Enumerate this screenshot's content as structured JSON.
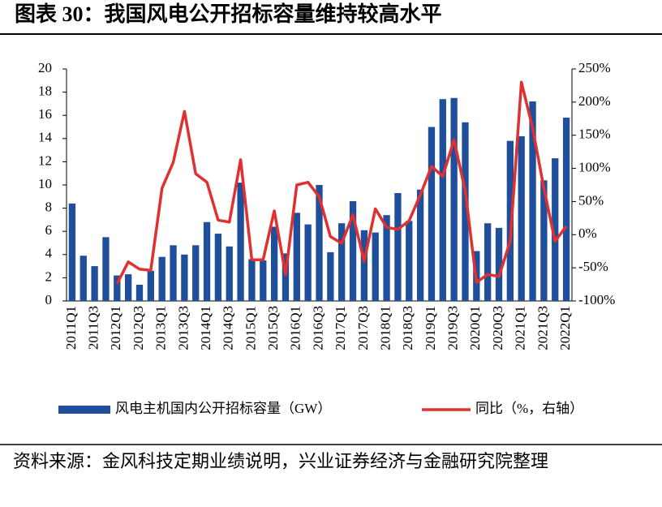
{
  "title": "图表 30：我国风电公开招标容量维持较高水平",
  "source": "资料来源：金风科技定期业绩说明，兴业证券经济与金融研究院整理",
  "chart_data": {
    "type": "bar_line",
    "categories": [
      "2011Q1",
      null,
      "2011Q3",
      null,
      "2012Q1",
      null,
      "2012Q3",
      null,
      "2013Q1",
      null,
      "2013Q3",
      null,
      "2014Q1",
      null,
      "2014Q3",
      null,
      "2015Q1",
      null,
      "2015Q3",
      null,
      "2016Q1",
      null,
      "2016Q3",
      null,
      "2017Q1",
      null,
      "2017Q3",
      null,
      "2018Q1",
      null,
      "2018Q3",
      null,
      "2019Q1",
      null,
      "2019Q3",
      null,
      "2020Q1",
      null,
      "2020Q3",
      null,
      "2021Q1",
      null,
      "2021Q3",
      null,
      "2022Q1"
    ],
    "series": [
      {
        "name": "风电主机国内公开招标容量（GW）",
        "type": "bar",
        "color": "#1f4e9a",
        "values": [
          8.4,
          3.9,
          3.0,
          5.5,
          2.2,
          2.3,
          1.4,
          2.6,
          3.8,
          4.8,
          4.0,
          4.8,
          6.8,
          5.8,
          4.7,
          10.2,
          3.6,
          3.5,
          6.4,
          4.1,
          7.6,
          6.6,
          10.0,
          4.2,
          6.7,
          8.6,
          6.1,
          5.9,
          7.4,
          9.3,
          6.9,
          9.6,
          15.0,
          17.4,
          17.5,
          15.4,
          4.3,
          6.7,
          6.3,
          13.8,
          14.2,
          17.2,
          10.4,
          12.3,
          15.8
        ]
      },
      {
        "name": "同比（%，右轴）",
        "type": "line",
        "axis": "y2",
        "color": "#e03030",
        "values": [
          null,
          null,
          null,
          null,
          -74,
          -41,
          -52,
          -54,
          70,
          109,
          186,
          92,
          79,
          22,
          19,
          113,
          -38,
          -38,
          36,
          -60,
          75,
          79,
          57,
          -3,
          -13,
          30,
          -40,
          39,
          11,
          8,
          21,
          60,
          103,
          88,
          143,
          66,
          -72,
          -60,
          -63,
          -10,
          230,
          161,
          70,
          -10,
          13
        ]
      }
    ],
    "ylim": [
      0,
      20
    ],
    "yticks": [
      0,
      2,
      4,
      6,
      8,
      10,
      12,
      14,
      16,
      18,
      20
    ],
    "y2lim": [
      -100,
      250
    ],
    "y2ticks": [
      {
        "value": -100,
        "label": "-100%"
      },
      {
        "value": -50,
        "label": "-50%"
      },
      {
        "value": 0,
        "label": "0%"
      },
      {
        "value": 50,
        "label": "50%"
      },
      {
        "value": 100,
        "label": "100%"
      },
      {
        "value": 150,
        "label": "150%"
      },
      {
        "value": 200,
        "label": "200%"
      },
      {
        "value": 250,
        "label": "250%"
      }
    ],
    "legend": "bottom"
  }
}
